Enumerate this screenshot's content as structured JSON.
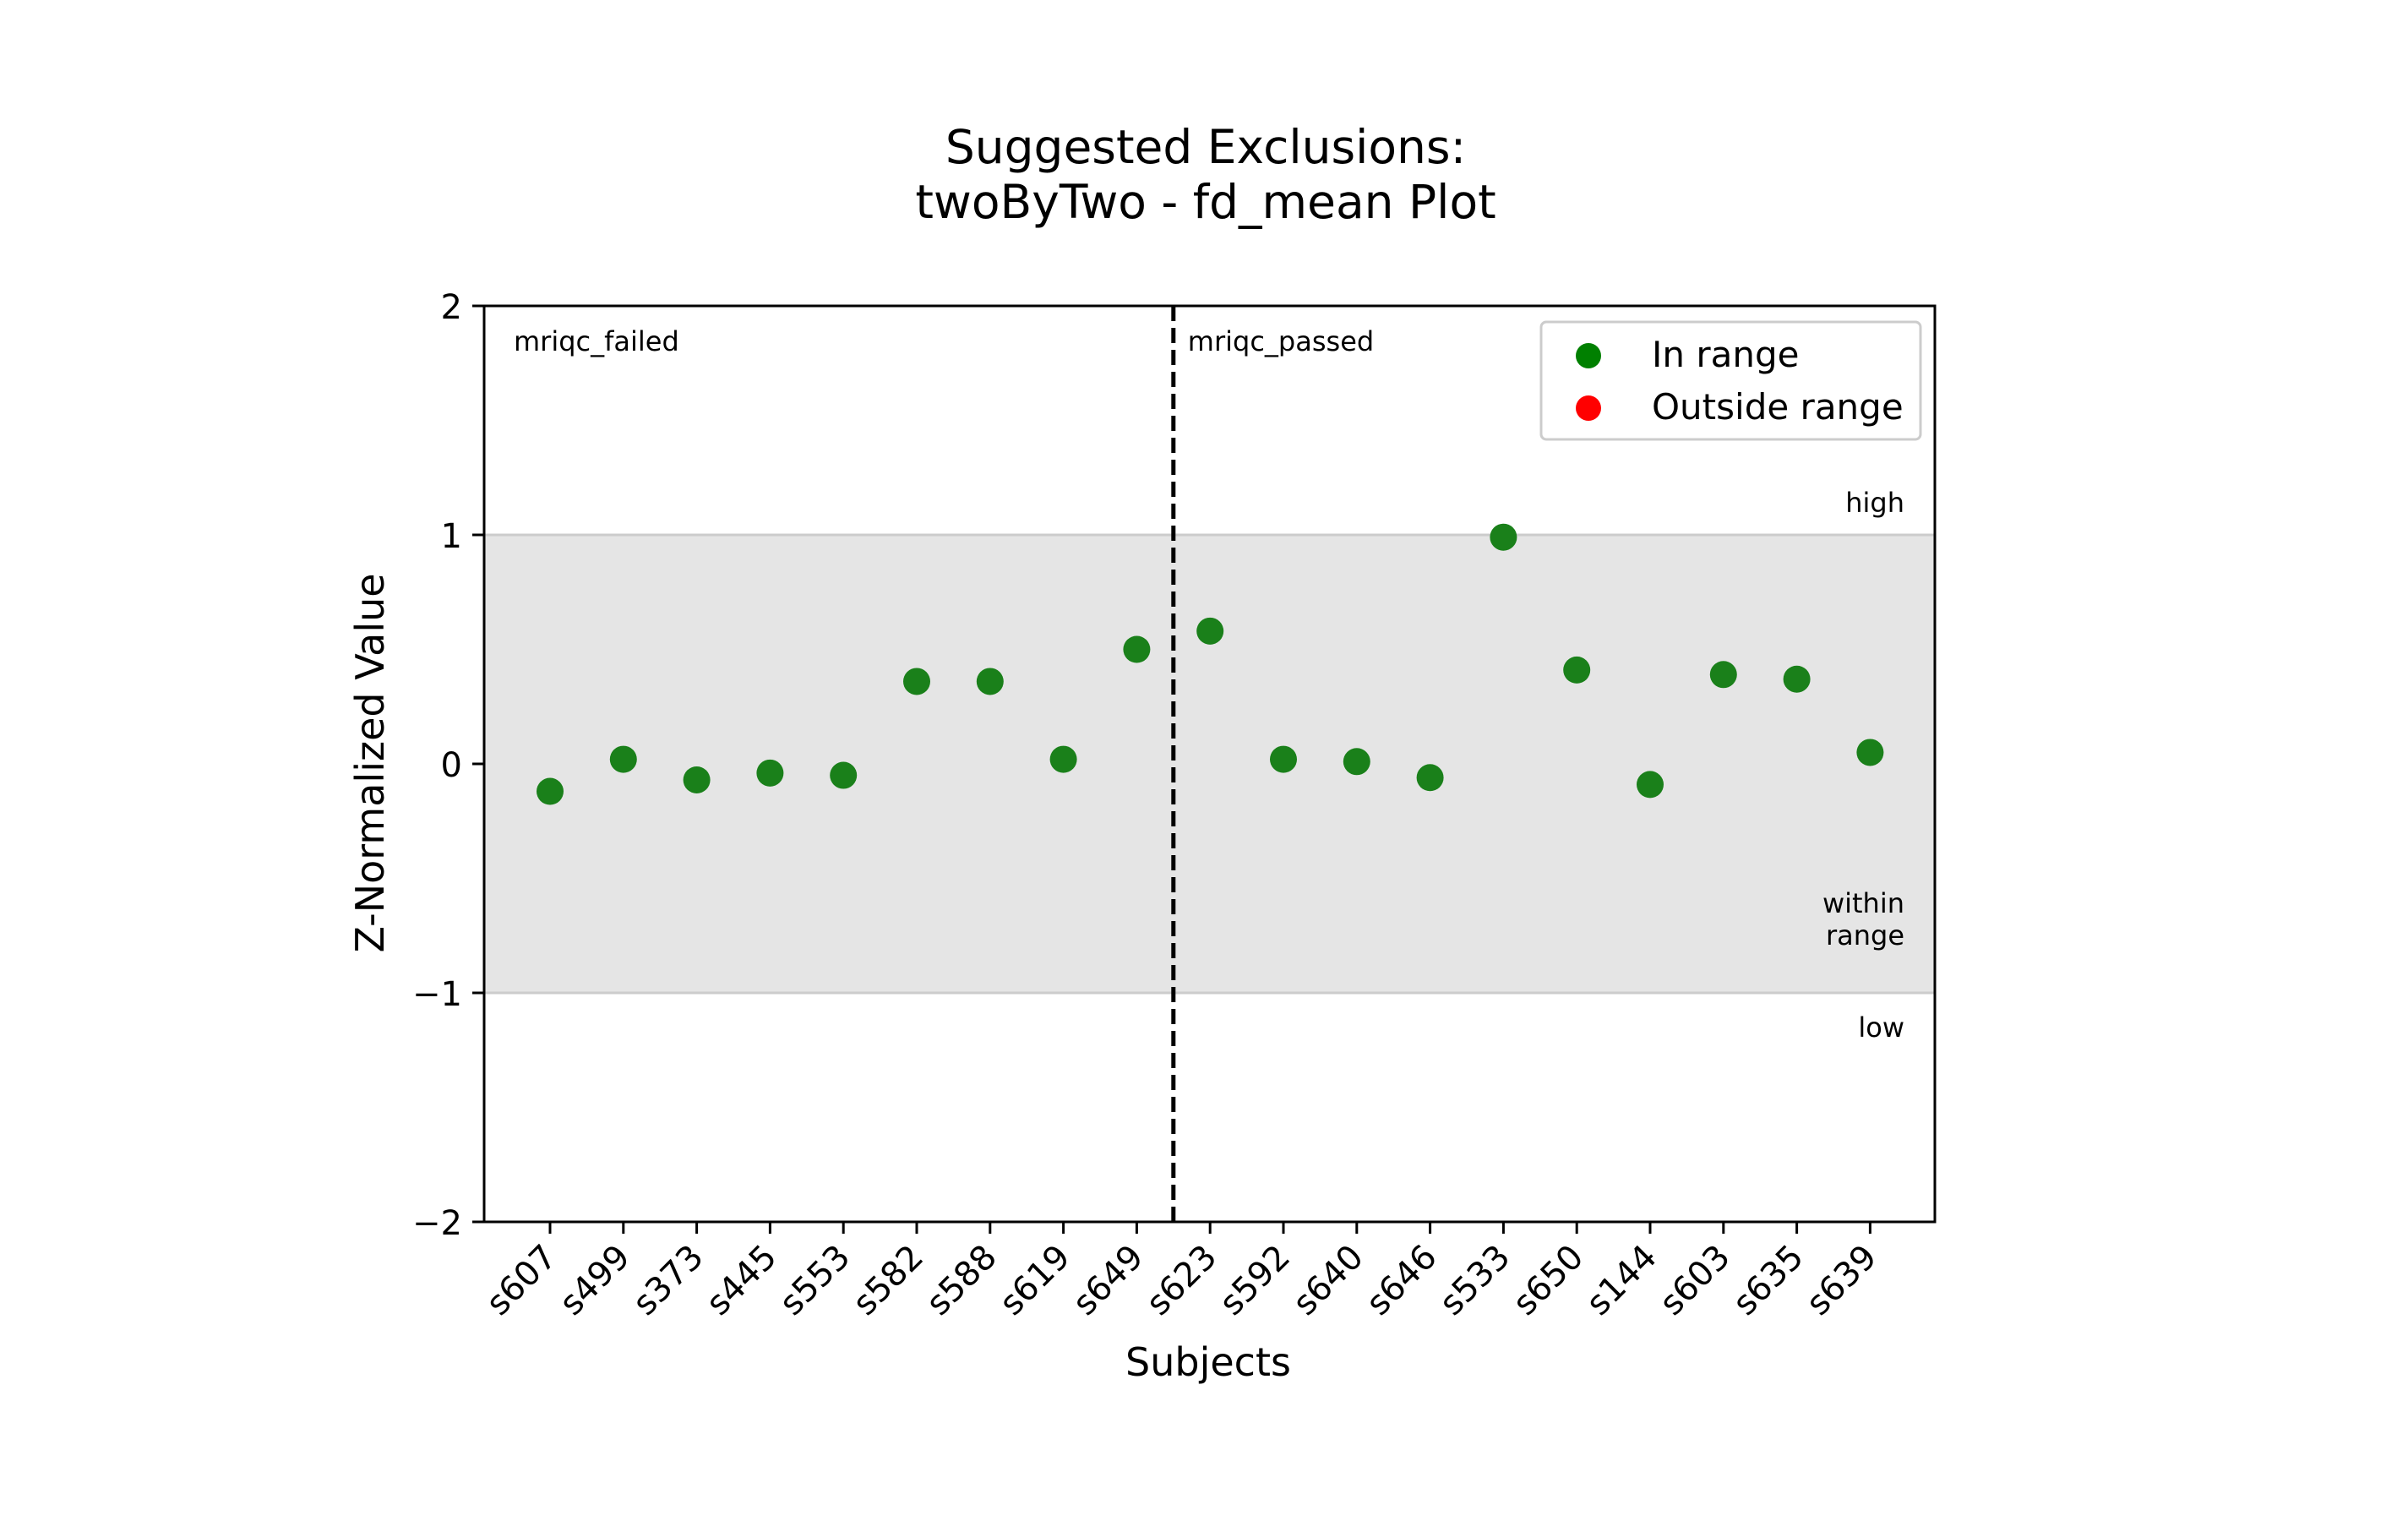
{
  "chart_data": {
    "type": "scatter",
    "title_line1": "Suggested Exclusions:",
    "title_line2": "twoByTwo - fd_mean Plot",
    "xlabel": "Subjects",
    "ylabel": "Z-Normalized Value",
    "ylim": [
      -2,
      2
    ],
    "yticks": [
      2,
      1,
      0,
      -1,
      -2
    ],
    "ytick_labels": [
      "2",
      "1",
      "0",
      "−1",
      "−2"
    ],
    "grid": false,
    "range_band": [
      -1,
      1
    ],
    "band_labels": {
      "high": "high",
      "within_line1": "within",
      "within_line2": "range",
      "low": "low"
    },
    "groups": [
      {
        "label": "mriqc_failed",
        "subjects": [
          "s607",
          "s499",
          "s373",
          "s445",
          "s553",
          "s582",
          "s588",
          "s619",
          "s649"
        ]
      },
      {
        "label": "mriqc_passed",
        "subjects": [
          "s623",
          "s592",
          "s640",
          "s646",
          "s533",
          "s650",
          "s144",
          "s603",
          "s635",
          "s639"
        ]
      }
    ],
    "categories": [
      "s607",
      "s499",
      "s373",
      "s445",
      "s553",
      "s582",
      "s588",
      "s619",
      "s649",
      "s623",
      "s592",
      "s640",
      "s646",
      "s533",
      "s650",
      "s144",
      "s603",
      "s635",
      "s639"
    ],
    "values": [
      -0.12,
      0.02,
      -0.07,
      -0.04,
      -0.05,
      0.36,
      0.36,
      0.02,
      0.5,
      0.58,
      0.02,
      0.01,
      -0.06,
      0.99,
      0.41,
      -0.09,
      0.39,
      0.37,
      0.05
    ],
    "divider_after_index": 8,
    "legend": {
      "placement": "top-right",
      "entries": [
        {
          "label": "In range",
          "color": "#008000"
        },
        {
          "label": "Outside range",
          "color": "#ff0000"
        }
      ]
    },
    "colors": {
      "in_range": "#1a801a",
      "band": "#e5e5e5",
      "band_edge": "#cccccc"
    }
  }
}
